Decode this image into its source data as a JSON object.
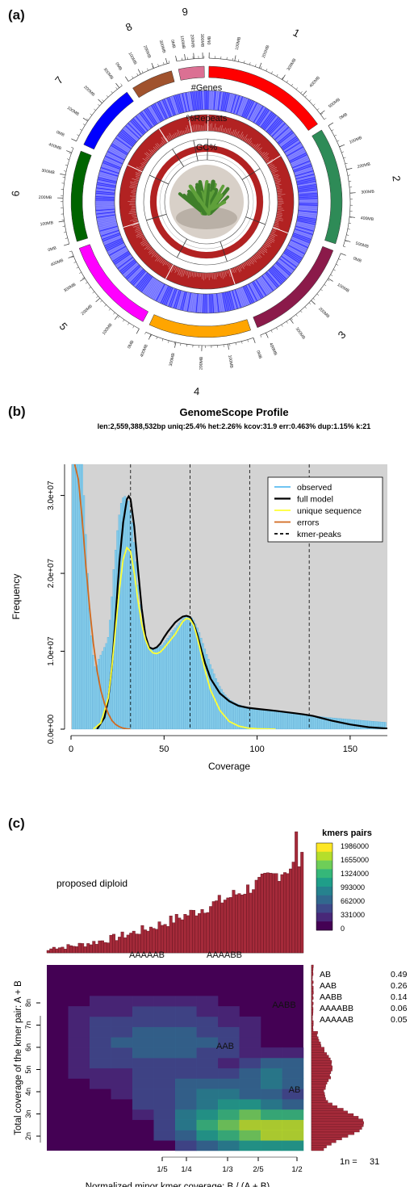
{
  "panel_labels": {
    "a": "(a)",
    "b": "(b)",
    "c": "(c)"
  },
  "chart_data": [
    {
      "type": "circos",
      "chromosomes": [
        {
          "name": "1",
          "color": "#ff0000",
          "ticks": [
            "0MB",
            "100MB",
            "200MB",
            "300MB",
            "400MB",
            "500MB"
          ]
        },
        {
          "name": "2",
          "color": "#2e8b57",
          "ticks": [
            "0MB",
            "100MB",
            "200MB",
            "300MB",
            "400MB",
            "500MB"
          ]
        },
        {
          "name": "3",
          "color": "#8b1a4a",
          "ticks": [
            "0MB",
            "100MB",
            "200MB",
            "300MB",
            "400MB"
          ]
        },
        {
          "name": "4",
          "color": "#ffa500",
          "ticks": [
            "0MB",
            "100MB",
            "200MB",
            "300MB",
            "400MB"
          ]
        },
        {
          "name": "5",
          "color": "#ff00ff",
          "ticks": [
            "0MB",
            "100MB",
            "200MB",
            "300MB",
            "400MB"
          ]
        },
        {
          "name": "6",
          "color": "#006400",
          "ticks": [
            "0MB",
            "100MB",
            "200MB",
            "300MB",
            "400MB"
          ]
        },
        {
          "name": "7",
          "color": "#0000ff",
          "ticks": [
            "0MB",
            "100MB",
            "200MB",
            "300MB"
          ]
        },
        {
          "name": "8",
          "color": "#a0522d",
          "ticks": [
            "0MB",
            "100MB",
            "200MB",
            "300MB"
          ]
        },
        {
          "name": "9",
          "color": "#db7093",
          "ticks": [
            "0MB",
            "100MB",
            "200MB",
            "300MB"
          ]
        }
      ],
      "track_labels": [
        "#Genes",
        "%Repeats",
        "GC%"
      ],
      "track_colors": {
        "genes": "#3b3bff",
        "repeats": "#b22222",
        "gc": "#b22222"
      }
    },
    {
      "type": "line",
      "title": "GenomeScope Profile",
      "subtitle": "len:2,559,388,532bp uniq:25.4%  het:2.26% kcov:31.9 err:0.463%  dup:1.15%  k:21",
      "xlabel": "Coverage",
      "ylabel": "Frequency",
      "xlim": [
        0,
        170
      ],
      "ylim": [
        0,
        34000000
      ],
      "xticks": [
        0,
        50,
        100,
        150
      ],
      "xtick_labels": [
        "0",
        "50",
        "100",
        "150"
      ],
      "yticks": [
        0,
        10000000,
        20000000,
        30000000
      ],
      "ytick_labels": [
        "0.0e+00",
        "1.0e+07",
        "2.0e+07",
        "3.0e+07"
      ],
      "kmer_peaks": [
        32,
        64,
        96,
        128
      ],
      "legend": [
        {
          "label": "observed",
          "color": "#5bbcf0",
          "dash": false
        },
        {
          "label": "full model",
          "color": "#000000",
          "dash": false
        },
        {
          "label": "unique sequence",
          "color": "#ffff33",
          "dash": false
        },
        {
          "label": "errors",
          "color": "#d2691e",
          "dash": false
        },
        {
          "label": "kmer-peaks",
          "color": "#000000",
          "dash": true
        }
      ],
      "series": [
        {
          "name": "full model",
          "x": [
            14,
            18,
            20,
            22,
            24,
            26,
            28,
            30,
            31,
            32,
            34,
            36,
            38,
            40,
            42,
            44,
            46,
            48,
            50,
            52,
            54,
            56,
            58,
            60,
            62,
            64,
            66,
            68,
            70,
            72,
            75,
            80,
            85,
            90,
            95,
            100,
            110,
            120,
            125,
            130,
            140,
            150,
            160,
            170
          ],
          "values": [
            0,
            1500000,
            3800000,
            8000000,
            14500000,
            21500000,
            26500000,
            29500000,
            29900000,
            29500000,
            26000000,
            20500000,
            15500000,
            12000000,
            10500000,
            10300000,
            10500000,
            11000000,
            11800000,
            12500000,
            13100000,
            13700000,
            14100000,
            14450000,
            14550000,
            14400000,
            13500000,
            12000000,
            10200000,
            8500000,
            6500000,
            4600000,
            3600000,
            3000000,
            2750000,
            2600000,
            2350000,
            2050000,
            1900000,
            1700000,
            1100000,
            600000,
            250000,
            80000
          ]
        },
        {
          "name": "unique sequence",
          "x": [
            12,
            16,
            20,
            22,
            24,
            26,
            28,
            30,
            32,
            34,
            36,
            38,
            40,
            42,
            44,
            46,
            48,
            50,
            52,
            54,
            56,
            58,
            60,
            62,
            64,
            66,
            68,
            70,
            72,
            75,
            80,
            85,
            90,
            95,
            100,
            110
          ],
          "values": [
            0,
            800000,
            4000000,
            8000000,
            13000000,
            18000000,
            21800000,
            23300000,
            22800000,
            20000000,
            16500000,
            13500000,
            11500000,
            10300000,
            9800000,
            9700000,
            9900000,
            10400000,
            11000000,
            11600000,
            12200000,
            13000000,
            13800000,
            14200000,
            14100000,
            13300000,
            11600000,
            9600000,
            7600000,
            5000000,
            2400000,
            1000000,
            400000,
            150000,
            50000,
            0
          ]
        },
        {
          "name": "errors",
          "x": [
            2,
            4,
            6,
            8,
            10,
            12,
            14,
            16,
            18,
            20,
            22,
            24,
            26,
            28,
            30,
            32
          ],
          "values": [
            34000000,
            32000000,
            27000000,
            21000000,
            15500000,
            11000000,
            7500000,
            5000000,
            3300000,
            2000000,
            1100000,
            600000,
            300000,
            120000,
            40000,
            0
          ]
        }
      ],
      "observed": {
        "x_start": 1,
        "x_step": 1,
        "values": [
          34000000,
          34000000,
          34000000,
          34000000,
          34000000,
          34000000,
          30000000,
          25000000,
          20000000,
          15500000,
          12000000,
          9500000,
          8000000,
          8200000,
          9000000,
          9500000,
          10000000,
          10500000,
          11000000,
          11800000,
          14000000,
          17000000,
          20500000,
          23000000,
          25500000,
          27500000,
          29000000,
          29700000,
          29900000,
          29700000,
          29300000,
          28000000,
          26500000,
          24000000,
          21500000,
          18500000,
          16000000,
          14000000,
          12600000,
          11800000,
          11000000,
          10700000,
          10500000,
          10400000,
          10350000,
          10400000,
          10500000,
          10650000,
          10800000,
          11100000,
          11400000,
          11700000,
          12000000,
          12400000,
          12700000,
          13000000,
          13300000,
          13600000,
          13900000,
          14200000,
          14350000,
          14450000,
          14500000,
          14450000,
          14300000,
          14000000,
          13500000,
          13000000,
          12400000,
          11700000,
          11000000,
          10300000,
          9600000,
          9000000,
          8300000,
          7700000,
          7100000,
          6500000,
          6000000,
          5500000,
          5100000,
          4700000,
          4400000,
          4100000,
          3900000,
          3700000,
          3550000,
          3400000,
          3300000,
          3200000,
          3100000,
          3000000,
          2950000,
          2900000,
          2850000,
          2800000,
          2750000,
          2700000,
          2650000,
          2620000,
          2580000,
          2550000,
          2500000,
          2470000,
          2440000,
          2400000,
          2370000,
          2340000,
          2300000,
          2270000,
          2240000,
          2200000,
          2170000,
          2140000,
          2110000,
          2080000,
          2050000,
          2020000,
          2000000,
          1980000,
          1960000,
          1940000,
          1920000,
          1900000,
          1880000,
          1860000,
          1830000,
          1800000,
          1770000,
          1740000,
          1710000,
          1680000,
          1650000,
          1620000,
          1590000,
          1560000,
          1530000,
          1500000,
          1480000,
          1460000,
          1440000,
          1420000,
          1400000,
          1380000,
          1360000,
          1340000,
          1320000,
          1300000,
          1280000,
          1260000,
          1240000,
          1220000,
          1200000,
          1180000,
          1160000,
          1140000,
          1120000,
          1100000,
          1080000,
          1060000,
          1040000,
          1020000,
          1000000,
          980000,
          960000,
          940000,
          920000,
          900000,
          880000
        ]
      },
      "grid": false,
      "legend_position": "top-right"
    },
    {
      "type": "heatmap",
      "title": "",
      "xlabel": "Normalized minor kmer coverage: B / (A + B)",
      "ylabel": "Total coverage of the kmer pair: A + B",
      "xticks": [
        "1/5",
        "1/4",
        "1/3",
        "2/5",
        "1/2"
      ],
      "yticks": [
        "2n",
        "3n",
        "4n",
        "5n",
        "6n",
        "7n",
        "8n"
      ],
      "legend_title": "kmers pairs",
      "legend_ticks": [
        "1986000",
        "1655000",
        "1324000",
        "993000",
        "662000",
        "331000",
        "0"
      ],
      "top_annotation": "proposed diploid",
      "smudges": [
        {
          "label": "AB",
          "fraction": "0.49"
        },
        {
          "label": "AAB",
          "fraction": "0.26"
        },
        {
          "label": "AABB",
          "fraction": "0.14"
        },
        {
          "label": "AAAABB",
          "fraction": "0.06"
        },
        {
          "label": "AAAAAB",
          "fraction": "0.05"
        }
      ],
      "smudge_labels_on_map": [
        "AAAAAB",
        "AAAABB",
        "AABB",
        "AAB",
        "AB"
      ],
      "one_n": "1n = ",
      "one_n_value": "31"
    }
  ]
}
